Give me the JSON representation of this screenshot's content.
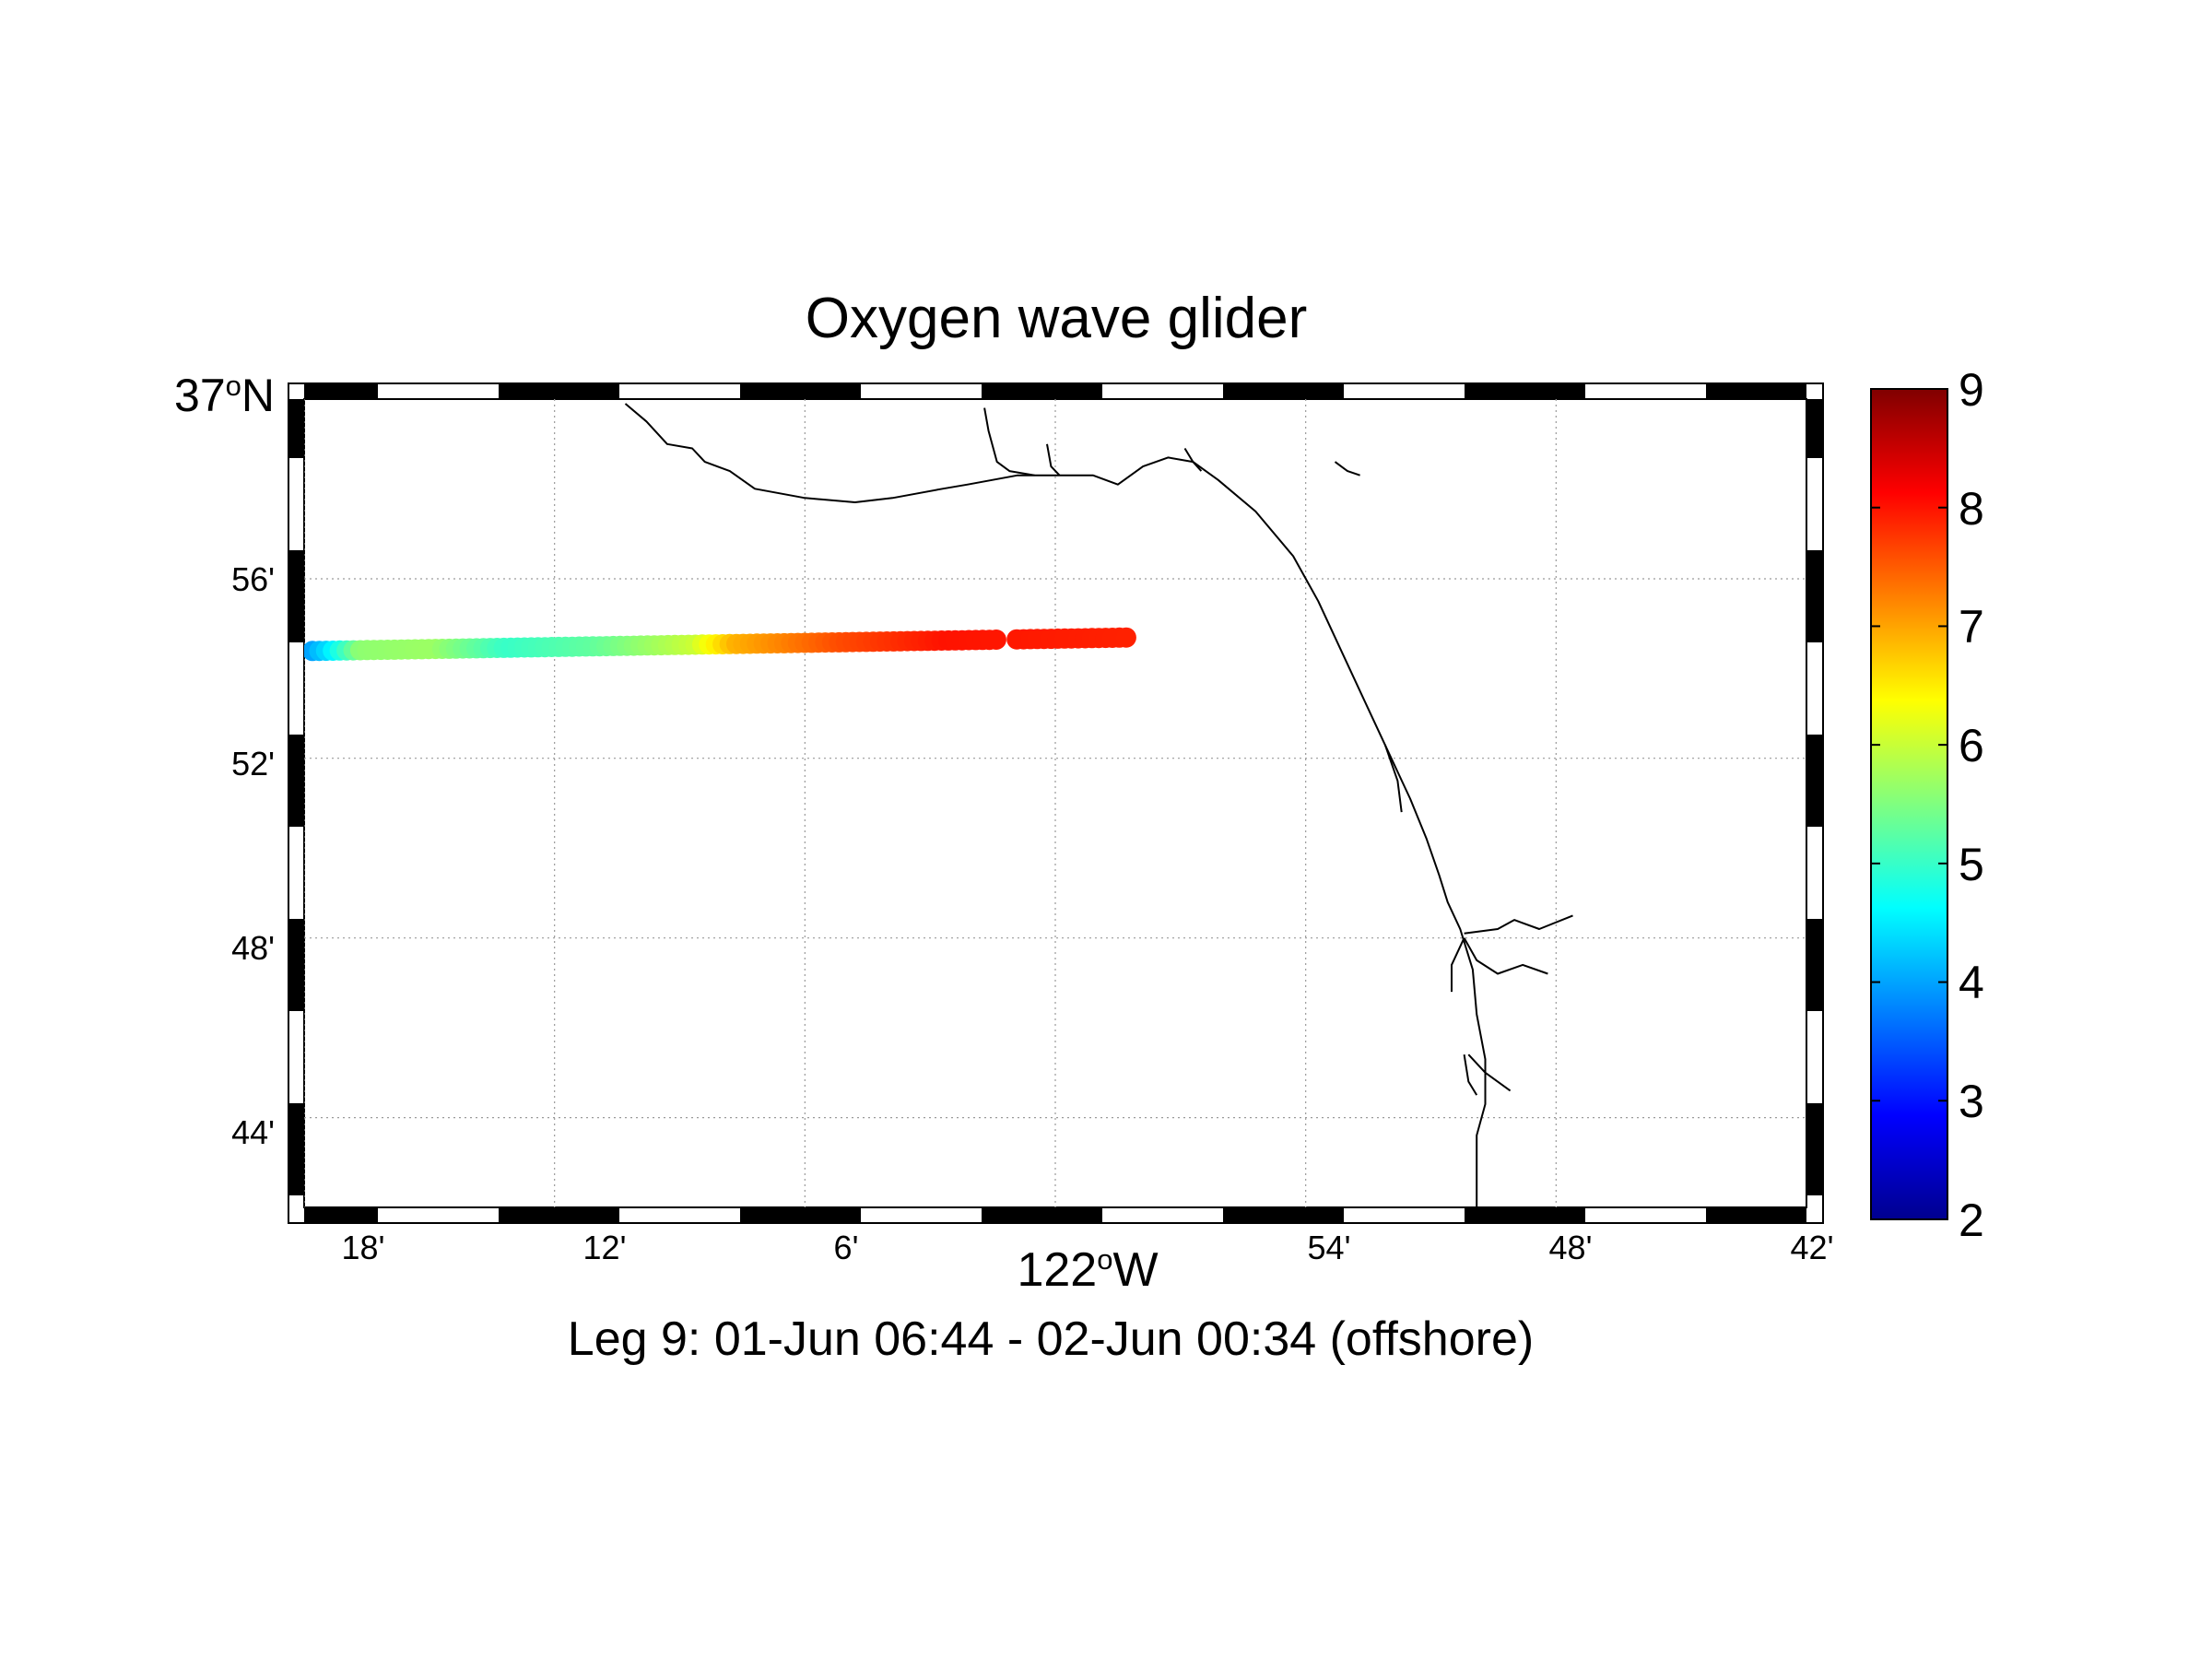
{
  "title": "Oxygen wave glider",
  "subtitle": "Leg 9: 01-Jun 06:44 - 02-Jun 00:34 (offshore)",
  "map": {
    "lon_range": [
      -122.3,
      -121.7
    ],
    "lat_range": [
      36.7,
      37.0
    ],
    "grid": true,
    "frame": "black-white alternating border"
  },
  "axes": {
    "lat_label": {
      "deg": "37",
      "sup": "o",
      "hemi": "N"
    },
    "lat_ticks": [
      "56'",
      "52'",
      "48'",
      "44'"
    ],
    "lon_label": {
      "deg": "122",
      "sup": "o",
      "hemi": "W"
    },
    "lon_ticks": [
      "18'",
      "12'",
      "6'",
      "54'",
      "48'",
      "42'"
    ]
  },
  "colorbar": {
    "min": 2,
    "max": 9,
    "ticks": [
      "9",
      "8",
      "7",
      "6",
      "5",
      "4",
      "3",
      "2"
    ],
    "colormap": "jet"
  },
  "chart_data": {
    "type": "scatter",
    "title": "Oxygen wave glider",
    "subtitle": "Leg 9: 01-Jun 06:44 - 02-Jun 00:34 (offshore)",
    "xlim": [
      -122.3,
      -121.7
    ],
    "ylim": [
      36.7,
      37.0
    ],
    "clim": [
      2,
      9
    ],
    "track_start": {
      "lon": -122.2967,
      "lat": 36.9065
    },
    "track_end": {
      "lon": -121.9717,
      "lat": 36.9115
    },
    "track_points": 120,
    "oxygen_profile": [
      {
        "frac": 0.0,
        "value": 4.0
      },
      {
        "frac": 0.02,
        "value": 4.4
      },
      {
        "frac": 0.06,
        "value": 5.6
      },
      {
        "frac": 0.15,
        "value": 5.7
      },
      {
        "frac": 0.24,
        "value": 5.0
      },
      {
        "frac": 0.35,
        "value": 5.3
      },
      {
        "frac": 0.47,
        "value": 6.0
      },
      {
        "frac": 0.52,
        "value": 6.9
      },
      {
        "frac": 0.65,
        "value": 7.6
      },
      {
        "frac": 0.78,
        "value": 8.0
      },
      {
        "frac": 1.0,
        "value": 7.9
      }
    ],
    "coastline": [
      [
        [
          -122.1717,
          36.9983
        ],
        [
          -122.1633,
          36.9917
        ],
        [
          -122.155,
          36.9833
        ],
        [
          -122.145,
          36.9817
        ],
        [
          -122.14,
          36.9767
        ],
        [
          -122.13,
          36.9733
        ],
        [
          -122.12,
          36.9667
        ],
        [
          -122.1,
          36.9633
        ],
        [
          -122.08,
          36.9617
        ],
        [
          -122.065,
          36.9633
        ],
        [
          -122.055,
          36.965
        ],
        [
          -122.045,
          36.9667
        ],
        [
          -122.035,
          36.9683
        ],
        [
          -122.025,
          36.97
        ],
        [
          -122.015,
          36.9717
        ],
        [
          -122.005,
          36.9717
        ],
        [
          -121.995,
          36.9717
        ],
        [
          -121.985,
          36.9717
        ],
        [
          -121.975,
          36.9683
        ],
        [
          -121.965,
          36.975
        ],
        [
          -121.955,
          36.9783
        ],
        [
          -121.945,
          36.9767
        ],
        [
          -121.935,
          36.97
        ],
        [
          -121.92,
          36.9583
        ],
        [
          -121.905,
          36.9417
        ],
        [
          -121.895,
          36.925
        ],
        [
          -121.885,
          36.905
        ],
        [
          -121.875,
          36.885
        ],
        [
          -121.865,
          36.865
        ],
        [
          -121.8583,
          36.8517
        ],
        [
          -121.8517,
          36.8367
        ],
        [
          -121.8467,
          36.8233
        ],
        [
          -121.8433,
          36.8133
        ],
        [
          -121.8383,
          36.8033
        ],
        [
          -121.8333,
          36.7883
        ],
        [
          -121.8317,
          36.7717
        ],
        [
          -121.8283,
          36.755
        ],
        [
          -121.8283,
          36.7383
        ],
        [
          -121.8317,
          36.7267
        ],
        [
          -121.8317,
          36.7
        ]
      ],
      [
        [
          -122.0283,
          36.9967
        ],
        [
          -122.0267,
          36.9883
        ],
        [
          -122.0233,
          36.9767
        ],
        [
          -122.0183,
          36.9733
        ],
        [
          -122.0083,
          36.9717
        ]
      ],
      [
        [
          -122.0033,
          36.9833
        ],
        [
          -122.0017,
          36.975
        ],
        [
          -121.9983,
          36.9717
        ]
      ],
      [
        [
          -121.9483,
          36.9817
        ],
        [
          -121.945,
          36.9767
        ],
        [
          -121.9417,
          36.9733
        ]
      ],
      [
        [
          -121.8883,
          36.9767
        ],
        [
          -121.8833,
          36.9733
        ],
        [
          -121.8783,
          36.9717
        ]
      ],
      [
        [
          -121.8683,
          36.8717
        ],
        [
          -121.8633,
          36.8583
        ],
        [
          -121.8617,
          36.8467
        ]
      ],
      [
        [
          -121.8367,
          36.8017
        ],
        [
          -121.8233,
          36.8033
        ],
        [
          -121.8167,
          36.8067
        ],
        [
          -121.8067,
          36.8033
        ],
        [
          -121.7933,
          36.8083
        ]
      ],
      [
        [
          -121.8367,
          36.8
        ],
        [
          -121.8317,
          36.7917
        ],
        [
          -121.8233,
          36.7867
        ],
        [
          -121.8133,
          36.79
        ],
        [
          -121.8033,
          36.7867
        ]
      ],
      [
        [
          -121.8367,
          36.8
        ],
        [
          -121.8417,
          36.79
        ],
        [
          -121.8417,
          36.78
        ]
      ],
      [
        [
          -121.835,
          36.7567
        ],
        [
          -121.8283,
          36.75
        ],
        [
          -121.8183,
          36.7433
        ]
      ],
      [
        [
          -121.8367,
          36.7567
        ],
        [
          -121.835,
          36.7467
        ],
        [
          -121.8317,
          36.7417
        ]
      ]
    ]
  }
}
